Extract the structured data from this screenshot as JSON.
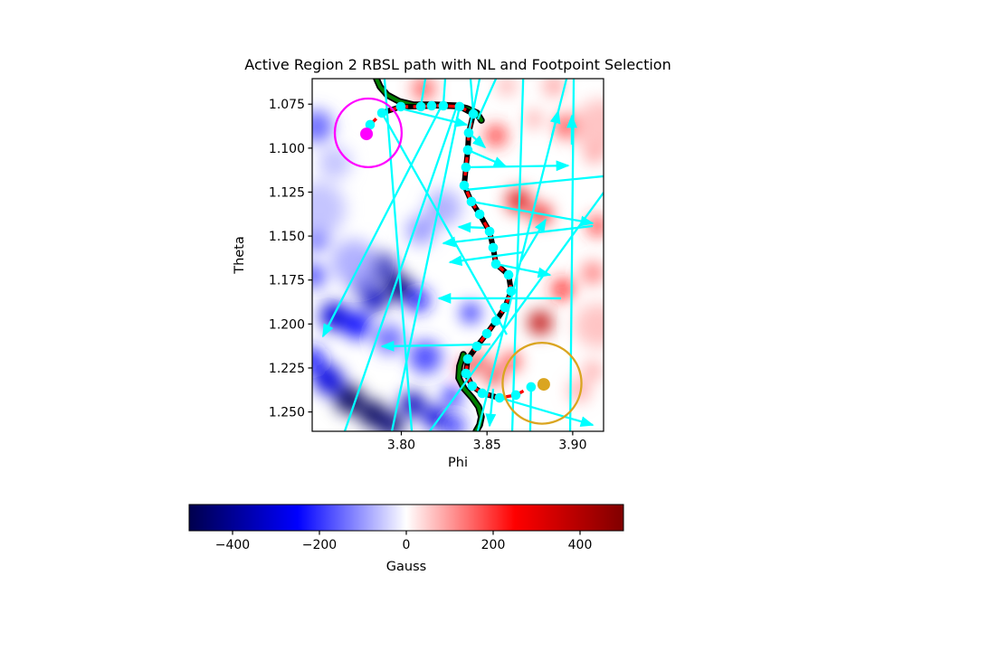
{
  "chart_data": {
    "type": "heatmap",
    "title": "Active Region 2 RBSL path with NL and Footpoint Selection",
    "xlabel": "Phi",
    "ylabel": "Theta",
    "xlim": [
      3.748,
      3.918
    ],
    "ylim": [
      1.0605,
      1.261
    ],
    "y_axis_inverted": true,
    "grid": false,
    "xticks": [
      {
        "v": 3.8,
        "label": "3.80"
      },
      {
        "v": 3.85,
        "label": "3.85"
      },
      {
        "v": 3.9,
        "label": "3.90"
      }
    ],
    "yticks": [
      {
        "v": 1.075,
        "label": "1.075"
      },
      {
        "v": 1.1,
        "label": "1.100"
      },
      {
        "v": 1.125,
        "label": "1.125"
      },
      {
        "v": 1.15,
        "label": "1.150"
      },
      {
        "v": 1.175,
        "label": "1.175"
      },
      {
        "v": 1.2,
        "label": "1.200"
      },
      {
        "v": 1.225,
        "label": "1.225"
      },
      {
        "v": 1.25,
        "label": "1.250"
      }
    ],
    "colorbar": {
      "label": "Gauss",
      "vmin": -500,
      "vmax": 500,
      "colormap": "seismic",
      "stops": [
        {
          "t": 0.0,
          "color": "#00004D"
        },
        {
          "t": 0.25,
          "color": "#0000FF"
        },
        {
          "t": 0.5,
          "color": "#FFFFFF"
        },
        {
          "t": 0.75,
          "color": "#FF0000"
        },
        {
          "t": 1.0,
          "color": "#800000"
        }
      ],
      "ticks": [
        {
          "v": -400,
          "label": "−400"
        },
        {
          "v": -200,
          "label": "−200"
        },
        {
          "v": 0,
          "label": "0"
        },
        {
          "v": 200,
          "label": "200"
        },
        {
          "v": 400,
          "label": "400"
        }
      ]
    },
    "rbsl_path": {
      "line_color": "#FF0000",
      "dashed": true,
      "outline_color": "#000000",
      "marker_color": "#00FFFF",
      "points": [
        [
          3.7797,
          1.0919
        ],
        [
          3.7818,
          1.0867
        ],
        [
          3.7887,
          1.08
        ],
        [
          3.7997,
          1.0764
        ],
        [
          3.8114,
          1.0764
        ],
        [
          3.8177,
          1.0759
        ],
        [
          3.8245,
          1.0759
        ],
        [
          3.834,
          1.0764
        ],
        [
          3.842,
          1.0806
        ],
        [
          3.8393,
          1.0913
        ],
        [
          3.8388,
          1.1011
        ],
        [
          3.8377,
          1.1109
        ],
        [
          3.8367,
          1.1212
        ],
        [
          3.8409,
          1.1304
        ],
        [
          3.8457,
          1.1376
        ],
        [
          3.8515,
          1.1474
        ],
        [
          3.8536,
          1.1566
        ],
        [
          3.8552,
          1.1659
        ],
        [
          3.8626,
          1.1721
        ],
        [
          3.8641,
          1.1813
        ],
        [
          3.8604,
          1.1906
        ],
        [
          3.8552,
          1.1983
        ],
        [
          3.8499,
          1.2055
        ],
        [
          3.8441,
          1.2127
        ],
        [
          3.8388,
          1.2199
        ],
        [
          3.8377,
          1.2281
        ],
        [
          3.8414,
          1.2353
        ],
        [
          3.8472,
          1.2394
        ],
        [
          3.8573,
          1.242
        ],
        [
          3.8668,
          1.2404
        ],
        [
          3.8757,
          1.2358
        ],
        [
          3.8831,
          1.2343
        ]
      ]
    },
    "neutral_line": {
      "color": "#008000",
      "outline_color": "#000000",
      "segments": [
        [
          [
            3.7855,
            1.0605
          ],
          [
            3.7876,
            1.0651
          ],
          [
            3.7918,
            1.0698
          ],
          [
            3.7987,
            1.0734
          ],
          [
            3.8071,
            1.0754
          ],
          [
            3.8193,
            1.0754
          ],
          [
            3.8314,
            1.0759
          ],
          [
            3.8383,
            1.0775
          ],
          [
            3.8441,
            1.08
          ],
          [
            3.8467,
            1.0842
          ]
        ],
        [
          [
            3.8362,
            1.2173
          ],
          [
            3.834,
            1.224
          ],
          [
            3.8335,
            1.2307
          ],
          [
            3.8367,
            1.2368
          ],
          [
            3.8414,
            1.242
          ],
          [
            3.8451,
            1.2471
          ],
          [
            3.8467,
            1.2528
          ],
          [
            3.8457,
            1.2574
          ],
          [
            3.8436,
            1.261
          ]
        ]
      ]
    },
    "footpoints": [
      {
        "name": "footpoint-negative",
        "color": "#FF00FF",
        "dot": [
          3.7797,
          1.0919
        ],
        "circle_center": [
          3.7807,
          1.0913
        ],
        "circle_radius": 0.0195
      },
      {
        "name": "footpoint-positive",
        "color": "#DAA520",
        "dot": [
          3.8831,
          1.2343
        ],
        "circle_center": [
          3.8821,
          1.2337
        ],
        "circle_radius": 0.023
      }
    ],
    "quiver": {
      "color": "#00FFFF",
      "arrows": [
        {
          "from": [
            3.7997,
            1.0775
          ],
          "to": [
            3.8382,
            1.0867
          ]
        },
        {
          "from": [
            3.8393,
            1.0913
          ],
          "to": [
            3.8488,
            1.0996
          ]
        },
        {
          "from": [
            3.8388,
            1.1011
          ],
          "to": [
            3.861,
            1.1104
          ]
        },
        {
          "from": [
            3.8377,
            1.1109
          ],
          "to": [
            3.8974,
            1.1099
          ]
        },
        {
          "from": [
            3.8879,
            1.0929
          ],
          "to": [
            3.8916,
            1.079
          ]
        },
        {
          "from": [
            3.8409,
            1.1304
          ],
          "to": [
            3.9117,
            1.1427
          ]
        },
        {
          "from": [
            3.8483,
            1.1453
          ],
          "to": [
            3.8335,
            1.1448
          ]
        },
        {
          "from": [
            3.9117,
            1.1443
          ],
          "to": [
            3.8245,
            1.1541
          ]
        },
        {
          "from": [
            3.871,
            1.1592
          ],
          "to": [
            3.8283,
            1.1649
          ]
        },
        {
          "from": [
            3.8694,
            1.1649
          ],
          "to": [
            3.8842,
            1.1407
          ]
        },
        {
          "from": [
            3.8552,
            1.1659
          ],
          "to": [
            3.8868,
            1.1721
          ]
        },
        {
          "from": [
            3.8932,
            1.1854
          ],
          "to": [
            3.8219,
            1.1854
          ]
        },
        {
          "from": [
            3.8235,
            1.0759
          ],
          "to": [
            3.7543,
            1.207
          ]
        },
        {
          "from": [
            3.852,
            1.2116
          ],
          "to": [
            3.7887,
            1.2127
          ]
        },
        {
          "from": [
            3.8536,
            1.2368
          ],
          "to": [
            3.8515,
            1.2579
          ]
        },
        {
          "from": [
            3.8578,
            1.242
          ],
          "to": [
            3.9117,
            1.2574
          ]
        },
        {
          "from": [
            3.8995,
            1.098
          ],
          "to": [
            3.8995,
            1.0816
          ]
        }
      ],
      "lines": [
        {
          "from": [
            3.7902,
            1.0605
          ],
          "to": [
            3.8061,
            1.261
          ]
        },
        {
          "from": [
            3.834,
            1.0764
          ],
          "to": [
            3.7945,
            1.261
          ]
        },
        {
          "from": [
            3.8325,
            1.0759
          ],
          "to": [
            3.767,
            1.261
          ]
        },
        {
          "from": [
            3.8964,
            1.0605
          ],
          "to": [
            3.8446,
            1.261
          ]
        },
        {
          "from": [
            3.8711,
            1.0605
          ],
          "to": [
            3.8647,
            1.261
          ]
        },
        {
          "from": [
            3.9006,
            1.0605
          ],
          "to": [
            3.8985,
            1.261
          ]
        },
        {
          "from": [
            3.8166,
            1.261
          ],
          "to": [
            3.918,
            1.1253
          ]
        },
        {
          "from": [
            3.8757,
            1.2358
          ],
          "to": [
            3.8752,
            1.261
          ]
        },
        {
          "from": [
            3.8114,
            1.0764
          ],
          "to": [
            3.814,
            1.0605
          ]
        },
        {
          "from": [
            3.8245,
            1.0759
          ],
          "to": [
            3.8256,
            1.0605
          ]
        },
        {
          "from": [
            3.842,
            1.0806
          ],
          "to": [
            3.8404,
            1.0605
          ]
        },
        {
          "from": [
            3.8377,
            1.1237
          ],
          "to": [
            3.918,
            1.116
          ]
        },
        {
          "from": [
            3.8393,
            1.0913
          ],
          "to": [
            3.8457,
            1.0605
          ]
        },
        {
          "from": [
            3.8446,
            1.0836
          ],
          "to": [
            3.8552,
            1.0605
          ]
        },
        {
          "from": [
            3.7887,
            1.08
          ],
          "to": [
            3.8615,
            1.206
          ]
        }
      ]
    },
    "magnetogram_blobs": [
      {
        "phi": 3.7506,
        "theta": 1.0877,
        "r": 0.0095,
        "gauss": -150
      },
      {
        "phi": 3.7876,
        "theta": 1.1674,
        "r": 0.0085,
        "gauss": -350
      },
      {
        "phi": 3.777,
        "theta": 1.1762,
        "r": 0.0074,
        "gauss": -300
      },
      {
        "phi": 3.7987,
        "theta": 1.1793,
        "r": 0.0079,
        "gauss": -450
      },
      {
        "phi": 3.7847,
        "theta": 1.1865,
        "r": 0.0069,
        "gauss": -350
      },
      {
        "phi": 3.8098,
        "theta": 1.1865,
        "r": 0.0069,
        "gauss": -220
      },
      {
        "phi": 3.7506,
        "theta": 1.1505,
        "r": 0.0074,
        "gauss": -200
      },
      {
        "phi": 3.749,
        "theta": 1.1726,
        "r": 0.0069,
        "gauss": -180
      },
      {
        "phi": 3.7575,
        "theta": 1.2317,
        "r": 0.0085,
        "gauss": -300
      },
      {
        "phi": 3.748,
        "theta": 1.2204,
        "r": 0.0074,
        "gauss": -220
      },
      {
        "phi": 3.7697,
        "theta": 1.243,
        "r": 0.0085,
        "gauss": -480
      },
      {
        "phi": 3.7834,
        "theta": 1.2512,
        "r": 0.0079,
        "gauss": -480
      },
      {
        "phi": 3.7939,
        "theta": 1.2574,
        "r": 0.0074,
        "gauss": -450
      },
      {
        "phi": 3.8066,
        "theta": 1.2456,
        "r": 0.0074,
        "gauss": -350
      },
      {
        "phi": 3.8198,
        "theta": 1.2533,
        "r": 0.0069,
        "gauss": -300
      },
      {
        "phi": 3.8309,
        "theta": 1.2579,
        "r": 0.0063,
        "gauss": -200
      },
      {
        "phi": 3.8404,
        "theta": 1.1937,
        "r": 0.0053,
        "gauss": -250
      },
      {
        "phi": 3.814,
        "theta": 1.2189,
        "r": 0.0095,
        "gauss": -180
      },
      {
        "phi": 3.7929,
        "theta": 1.2086,
        "r": 0.0085,
        "gauss": -150
      },
      {
        "phi": 3.8245,
        "theta": 1.134,
        "r": 0.0106,
        "gauss": -80
      },
      {
        "phi": 3.8114,
        "theta": 1.1468,
        "r": 0.0085,
        "gauss": -100
      },
      {
        "phi": 3.7612,
        "theta": 1.1083,
        "r": 0.0095,
        "gauss": -60
      },
      {
        "phi": 3.8298,
        "theta": 1.2409,
        "r": 0.0053,
        "gauss": -250
      },
      {
        "phi": 3.7611,
        "theta": 1.1956,
        "r": 0.0085,
        "gauss": -300
      },
      {
        "phi": 3.7744,
        "theta": 1.2009,
        "r": 0.0079,
        "gauss": -250
      },
      {
        "phi": 3.7517,
        "theta": 1.1347,
        "r": 0.0158,
        "gauss": -60
      },
      {
        "phi": 3.7723,
        "theta": 1.1649,
        "r": 0.0132,
        "gauss": -80
      },
      {
        "phi": 3.813,
        "theta": 1.0662,
        "r": 0.0063,
        "gauss": 180
      },
      {
        "phi": 3.8552,
        "theta": 1.0929,
        "r": 0.0063,
        "gauss": 200
      },
      {
        "phi": 3.8974,
        "theta": 1.0877,
        "r": 0.0069,
        "gauss": 230
      },
      {
        "phi": 3.9127,
        "theta": 1.1021,
        "r": 0.0053,
        "gauss": 180
      },
      {
        "phi": 3.8684,
        "theta": 1.1299,
        "r": 0.0069,
        "gauss": 320
      },
      {
        "phi": 3.8816,
        "theta": 1.1376,
        "r": 0.0058,
        "gauss": 280
      },
      {
        "phi": 3.9143,
        "theta": 1.1443,
        "r": 0.0058,
        "gauss": 200
      },
      {
        "phi": 3.8942,
        "theta": 1.1803,
        "r": 0.0063,
        "gauss": 220
      },
      {
        "phi": 3.881,
        "theta": 1.1993,
        "r": 0.0069,
        "gauss": 380
      },
      {
        "phi": 3.9117,
        "theta": 1.171,
        "r": 0.0063,
        "gauss": 140
      },
      {
        "phi": 3.8457,
        "theta": 1.2214,
        "r": 0.0042,
        "gauss": 280
      },
      {
        "phi": 3.8541,
        "theta": 1.2296,
        "r": 0.0048,
        "gauss": 300
      },
      {
        "phi": 3.8641,
        "theta": 1.2214,
        "r": 0.0048,
        "gauss": 240
      },
      {
        "phi": 3.8889,
        "theta": 1.0646,
        "r": 0.0053,
        "gauss": 120
      },
      {
        "phi": 3.8774,
        "theta": 1.0836,
        "r": 0.0048,
        "gauss": 100
      },
      {
        "phi": 3.9038,
        "theta": 1.2379,
        "r": 0.0063,
        "gauss": 90
      },
      {
        "phi": 3.8615,
        "theta": 1.0646,
        "r": 0.0048,
        "gauss": 100
      },
      {
        "phi": 3.9117,
        "theta": 1.2266,
        "r": 0.0053,
        "gauss": 100
      },
      {
        "phi": 3.8372,
        "theta": 1.225,
        "r": 0.0042,
        "gauss": 300
      },
      {
        "phi": 3.9164,
        "theta": 1.0877,
        "r": 0.0158,
        "gauss": 60
      },
      {
        "phi": 3.9143,
        "theta": 1.2009,
        "r": 0.0132,
        "gauss": 60
      }
    ]
  }
}
